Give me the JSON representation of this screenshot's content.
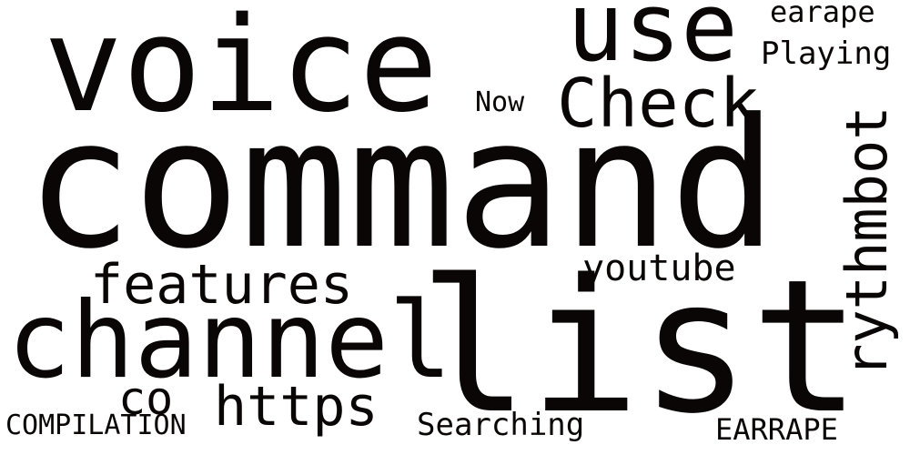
{
  "background_color": "#ffffff",
  "text_color": "#0b0606",
  "words": {
    "command": "command",
    "voice": "voice",
    "list": "list",
    "channel": "channel",
    "use": "use",
    "check": "Check",
    "rythmbot": "rythmbot",
    "features": "features",
    "https": "https",
    "youtube": "youtube",
    "co": "co",
    "playing": "Playing",
    "earape": "earape",
    "now": "Now",
    "searching": "Searching",
    "compilation": "COMPILATION",
    "earrape": "EARRAPE"
  }
}
